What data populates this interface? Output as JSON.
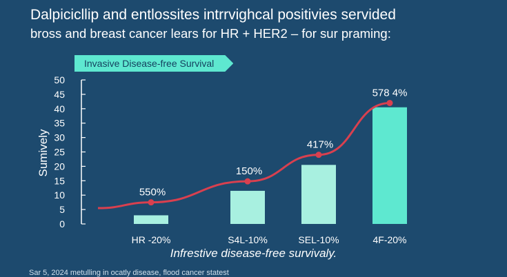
{
  "header": {
    "title_line1": "Dalpicicllip and entlossites intrrvighcal positivies servided",
    "title_line2_main": "bross and breast cancer lears",
    "title_line2_rest": " for HR + HER2 – for sur praming:",
    "badge": "Invasive Disease-free Survival"
  },
  "footer": {
    "source": "Sar 5, 2024 metulling in ocatly disease, flood cancer statest"
  },
  "chart_data": {
    "type": "bar",
    "title": "Invasive Disease-free Survival",
    "xlabel": "Infrestive disease-free survivaly.",
    "ylabel": "Sumively",
    "ylim": [
      0,
      50
    ],
    "yticks": [
      0,
      5,
      10,
      15,
      20,
      25,
      30,
      35,
      40,
      45,
      50
    ],
    "categories": [
      "HR -20%",
      "S4L-10%",
      "SEL-10%",
      "4F-20%"
    ],
    "values": [
      3,
      11.5,
      20.5,
      40.5
    ],
    "trend_line": {
      "points": [
        {
          "category": "HR -20%",
          "value": 7.5,
          "label": "550%"
        },
        {
          "category": "S4L-10%",
          "value": 14.8,
          "label": "150%"
        },
        {
          "category": "SEL-10%",
          "value": 24,
          "label": "417%"
        },
        {
          "category": "4F-20%",
          "value": 42,
          "label": "578 4%"
        }
      ]
    },
    "colors": {
      "bar_light": "#a8f0e0",
      "bar_strong": "#5ee8d0",
      "line": "#d9404f",
      "axis": "#ffffff"
    }
  }
}
